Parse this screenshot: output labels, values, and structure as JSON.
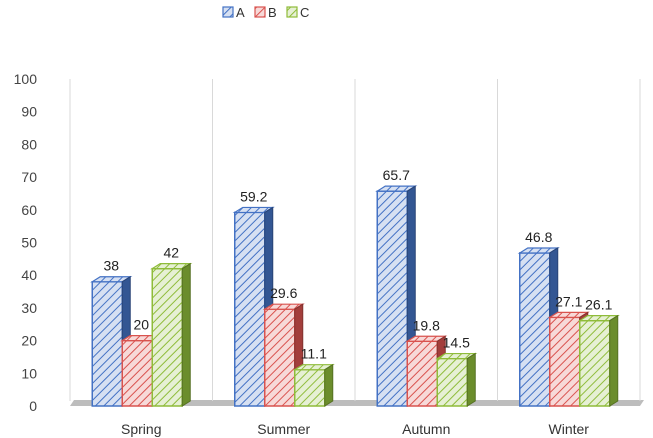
{
  "chart_data": {
    "type": "bar",
    "categories": [
      "Spring",
      "Summer",
      "Autumn",
      "Winter"
    ],
    "series": [
      {
        "name": "A",
        "values": [
          38,
          59.2,
          65.7,
          46.8
        ],
        "color": "#4472c4"
      },
      {
        "name": "B",
        "values": [
          20,
          29.6,
          19.8,
          27.1
        ],
        "color": "#d9534f"
      },
      {
        "name": "C",
        "values": [
          42,
          11.1,
          14.5,
          26.1
        ],
        "color": "#8fbc3a"
      }
    ],
    "data_labels": [
      [
        "38",
        "20",
        "42"
      ],
      [
        "59.2",
        "29.6",
        "11.1"
      ],
      [
        "65.7",
        "19.8",
        "14.5"
      ],
      [
        "46.8",
        "27.1",
        "26.1"
      ]
    ],
    "ylim": [
      0,
      100
    ],
    "yticks": [
      0,
      10,
      20,
      30,
      40,
      50,
      60,
      70,
      80,
      90,
      100
    ],
    "legend_position": "top-left",
    "grid": false,
    "style": "3d-hatched"
  }
}
